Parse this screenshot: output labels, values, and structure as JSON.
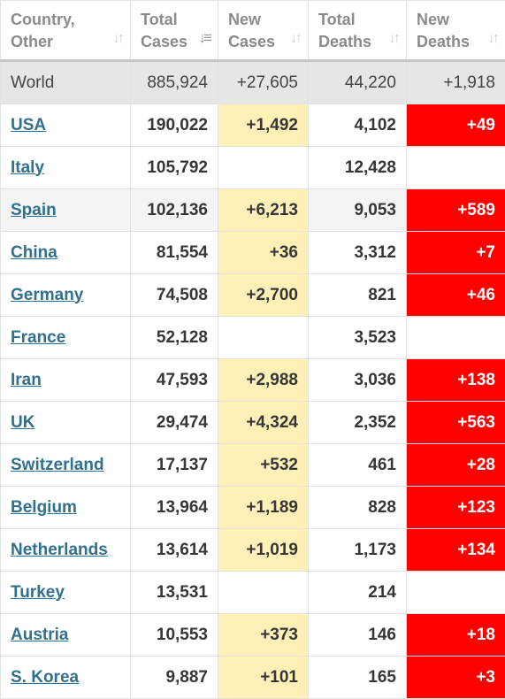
{
  "table": {
    "headers": [
      {
        "line1": "Country,",
        "line2": "Other"
      },
      {
        "line1": "Total",
        "line2": "Cases"
      },
      {
        "line1": "New",
        "line2": "Cases"
      },
      {
        "line1": "Total",
        "line2": "Deaths"
      },
      {
        "line1": "New",
        "line2": "Deaths"
      }
    ],
    "sort_icon": "sort-arrows-icon",
    "active_sort_icon": "sort-descending-icon",
    "world": {
      "country": "World",
      "total_cases": "885,924",
      "new_cases": "+27,605",
      "total_deaths": "44,220",
      "new_deaths": "+1,918"
    },
    "rows": [
      {
        "country": "USA",
        "total_cases": "190,022",
        "new_cases": "+1,492",
        "total_deaths": "4,102",
        "new_deaths": "+49"
      },
      {
        "country": "Italy",
        "total_cases": "105,792",
        "new_cases": "",
        "total_deaths": "12,428",
        "new_deaths": ""
      },
      {
        "country": "Spain",
        "total_cases": "102,136",
        "new_cases": "+6,213",
        "total_deaths": "9,053",
        "new_deaths": "+589"
      },
      {
        "country": "China",
        "total_cases": "81,554",
        "new_cases": "+36",
        "total_deaths": "3,312",
        "new_deaths": "+7"
      },
      {
        "country": "Germany",
        "total_cases": "74,508",
        "new_cases": "+2,700",
        "total_deaths": "821",
        "new_deaths": "+46"
      },
      {
        "country": "France",
        "total_cases": "52,128",
        "new_cases": "",
        "total_deaths": "3,523",
        "new_deaths": ""
      },
      {
        "country": "Iran",
        "total_cases": "47,593",
        "new_cases": "+2,988",
        "total_deaths": "3,036",
        "new_deaths": "+138"
      },
      {
        "country": "UK",
        "total_cases": "29,474",
        "new_cases": "+4,324",
        "total_deaths": "2,352",
        "new_deaths": "+563"
      },
      {
        "country": "Switzerland",
        "total_cases": "17,137",
        "new_cases": "+532",
        "total_deaths": "461",
        "new_deaths": "+28"
      },
      {
        "country": "Belgium",
        "total_cases": "13,964",
        "new_cases": "+1,189",
        "total_deaths": "828",
        "new_deaths": "+123"
      },
      {
        "country": "Netherlands",
        "total_cases": "13,614",
        "new_cases": "+1,019",
        "total_deaths": "1,173",
        "new_deaths": "+134"
      },
      {
        "country": "Turkey",
        "total_cases": "13,531",
        "new_cases": "",
        "total_deaths": "214",
        "new_deaths": ""
      },
      {
        "country": "Austria",
        "total_cases": "10,553",
        "new_cases": "+373",
        "total_deaths": "146",
        "new_deaths": "+18"
      },
      {
        "country": "S. Korea",
        "total_cases": "9,887",
        "new_cases": "+101",
        "total_deaths": "165",
        "new_deaths": "+3"
      }
    ],
    "colors": {
      "link": "#31708f",
      "new_cases_bg": "#fff0b8",
      "new_deaths_bg": "#ff0000",
      "world_row_bg": "#e6e6e6",
      "highlight_row_bg": "#f4f4f4"
    },
    "highlighted_row_index": 2
  }
}
